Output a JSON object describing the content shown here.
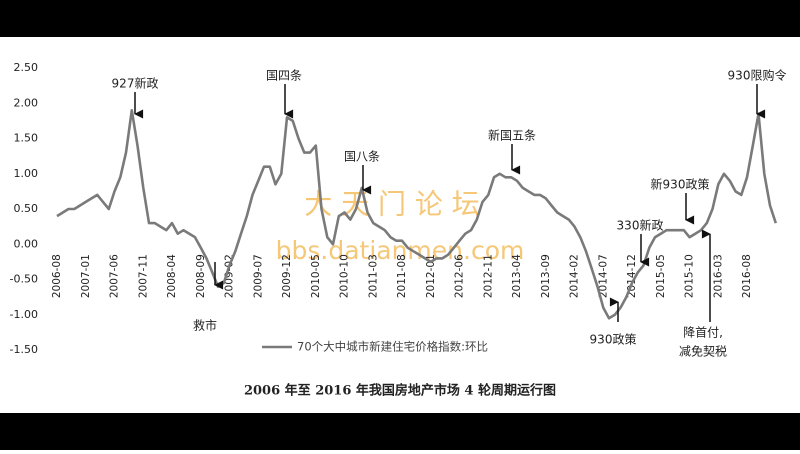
{
  "chart_data": {
    "type": "line",
    "caption": "2006 年至 2016 年我国房地产市场 4 轮周期运行图",
    "watermark": [
      "大 天 门 论 坛",
      "bbs.datianmen.com"
    ],
    "annotations": [
      "927新政",
      "国四条",
      "国八条",
      "新国五条",
      "330新政",
      "新930政策",
      "930限购令",
      "救市",
      "930政策",
      "降首付,",
      "减免契税"
    ],
    "categories": [
      "2006-08",
      null,
      null,
      null,
      null,
      "2007-01",
      null,
      null,
      null,
      null,
      "2007-06",
      null,
      null,
      null,
      null,
      "2007-11",
      null,
      null,
      null,
      null,
      "2008-04",
      null,
      null,
      null,
      null,
      "2008-09",
      null,
      null,
      null,
      null,
      "2009-02",
      null,
      null,
      null,
      null,
      "2009-07",
      null,
      null,
      null,
      null,
      "2009-12",
      null,
      null,
      null,
      null,
      "2010-05",
      null,
      null,
      null,
      null,
      "2010-10",
      null,
      null,
      null,
      null,
      "2011-03",
      null,
      null,
      null,
      null,
      "2011-08",
      null,
      null,
      null,
      null,
      "2012-01",
      null,
      null,
      null,
      null,
      "2012-06",
      null,
      null,
      null,
      null,
      "2012-11",
      null,
      null,
      null,
      null,
      "2013-04",
      null,
      null,
      null,
      null,
      "2013-09",
      null,
      null,
      null,
      null,
      "2014-02",
      null,
      null,
      null,
      null,
      "2014-07",
      null,
      null,
      null,
      null,
      "2014-12",
      null,
      null,
      null,
      null,
      "2015-05",
      null,
      null,
      null,
      null,
      "2015-10",
      null,
      null,
      null,
      null,
      "2016-03",
      null,
      null,
      null,
      null,
      "2016-08",
      null,
      null,
      null,
      null,
      null
    ],
    "series": [
      {
        "name": "70个大中城市新建住宅价格指数:环比",
        "color": "#7a7a7a",
        "values": [
          0.4,
          0.45,
          0.5,
          0.5,
          0.55,
          0.6,
          0.65,
          0.7,
          0.6,
          0.5,
          0.75,
          0.95,
          1.3,
          1.9,
          1.4,
          0.8,
          0.3,
          0.3,
          0.25,
          0.2,
          0.3,
          0.15,
          0.2,
          0.15,
          0.1,
          -0.05,
          -0.2,
          -0.4,
          -0.6,
          -0.55,
          -0.3,
          -0.1,
          0.15,
          0.4,
          0.7,
          0.9,
          1.1,
          1.1,
          0.85,
          1.0,
          1.8,
          1.75,
          1.5,
          1.3,
          1.3,
          1.4,
          0.5,
          0.1,
          0.0,
          0.4,
          0.45,
          0.35,
          0.5,
          0.8,
          0.45,
          0.3,
          0.25,
          0.2,
          0.1,
          0.05,
          0.05,
          -0.05,
          -0.1,
          -0.15,
          -0.2,
          -0.25,
          -0.2,
          -0.2,
          -0.15,
          -0.05,
          0.05,
          0.15,
          0.2,
          0.35,
          0.6,
          0.7,
          0.95,
          1.0,
          0.95,
          0.95,
          0.9,
          0.8,
          0.75,
          0.7,
          0.7,
          0.65,
          0.55,
          0.45,
          0.4,
          0.35,
          0.25,
          0.1,
          -0.1,
          -0.35,
          -0.6,
          -0.9,
          -1.05,
          -1.0,
          -0.9,
          -0.75,
          -0.55,
          -0.4,
          -0.3,
          -0.05,
          0.1,
          0.15,
          0.2,
          0.2,
          0.2,
          0.2,
          0.1,
          0.15,
          0.2,
          0.3,
          0.5,
          0.85,
          1.0,
          0.9,
          0.75,
          0.7,
          0.95,
          1.4,
          1.85,
          1.0,
          0.55,
          0.3
        ]
      }
    ],
    "ylim": [
      -1.5,
      2.5
    ],
    "yticks": [
      {
        "value": 2.5,
        "label": "2.50"
      },
      {
        "value": 2,
        "label": "2.00"
      },
      {
        "value": 1.5,
        "label": "1.50"
      },
      {
        "value": 1,
        "label": "1.00"
      },
      {
        "value": 0.5,
        "label": "0.50"
      },
      {
        "value": 0,
        "label": "0.00"
      },
      {
        "value": -0.5,
        "label": "-0.50"
      },
      {
        "value": -1,
        "label": "-1.00"
      },
      {
        "value": -1.5,
        "label": "-1.50"
      }
    ],
    "grid": false
  }
}
